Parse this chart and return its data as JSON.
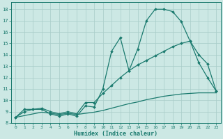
{
  "xlabel": "Humidex (Indice chaleur)",
  "xlim": [
    -0.5,
    23.5
  ],
  "ylim": [
    8,
    18.6
  ],
  "yticks": [
    8,
    9,
    10,
    11,
    12,
    13,
    14,
    15,
    16,
    17,
    18
  ],
  "xticks": [
    0,
    1,
    2,
    3,
    4,
    5,
    6,
    7,
    8,
    9,
    10,
    11,
    12,
    13,
    14,
    15,
    16,
    17,
    18,
    19,
    20,
    21,
    22,
    23
  ],
  "bg_color": "#cce8e4",
  "grid_color": "#a8ccc8",
  "line_color": "#1a7a6e",
  "line1_x": [
    0,
    1,
    2,
    3,
    4,
    5,
    6,
    7,
    8,
    9,
    10,
    11,
    12,
    13,
    14,
    15,
    16,
    17,
    18,
    19,
    20,
    21,
    22,
    23
  ],
  "line1_y": [
    8.5,
    9.2,
    9.2,
    9.2,
    8.8,
    8.6,
    8.8,
    8.6,
    9.5,
    9.4,
    11.0,
    14.3,
    15.5,
    12.6,
    14.5,
    17.0,
    18.0,
    18.0,
    17.8,
    16.9,
    15.2,
    13.3,
    12.0,
    10.8
  ],
  "line2_x": [
    0,
    1,
    2,
    3,
    4,
    5,
    6,
    7,
    8,
    9,
    10,
    11,
    12,
    13,
    14,
    15,
    16,
    17,
    18,
    19,
    20,
    21,
    22,
    23
  ],
  "line2_y": [
    8.5,
    9.0,
    9.2,
    9.3,
    9.0,
    8.8,
    9.0,
    8.8,
    9.8,
    9.8,
    10.6,
    11.3,
    12.0,
    12.6,
    13.1,
    13.5,
    13.9,
    14.3,
    14.7,
    15.0,
    15.2,
    14.0,
    13.2,
    10.8
  ],
  "line3_x": [
    0,
    1,
    2,
    3,
    4,
    5,
    6,
    7,
    8,
    9,
    10,
    11,
    12,
    13,
    14,
    15,
    16,
    17,
    18,
    19,
    20,
    21,
    22,
    23
  ],
  "line3_y": [
    8.5,
    8.65,
    8.8,
    8.95,
    8.85,
    8.75,
    8.85,
    8.75,
    8.85,
    8.95,
    9.1,
    9.3,
    9.5,
    9.7,
    9.85,
    10.05,
    10.2,
    10.35,
    10.45,
    10.55,
    10.6,
    10.65,
    10.65,
    10.65
  ]
}
